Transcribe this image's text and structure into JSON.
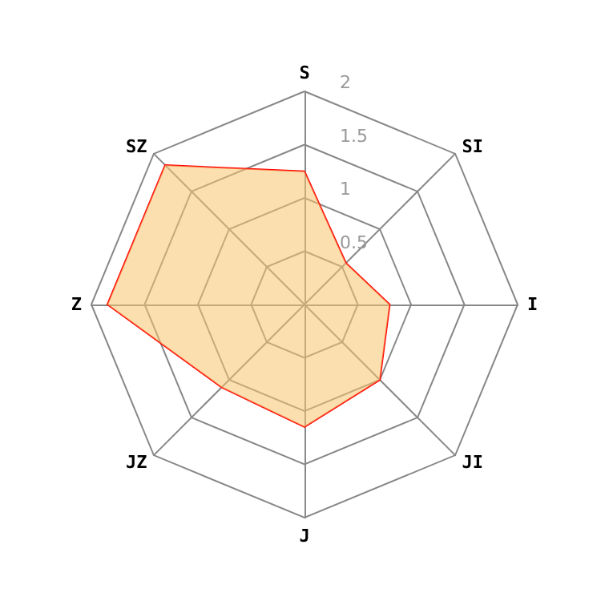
{
  "chart_data": {
    "type": "radar",
    "categories": [
      "S",
      "SI",
      "I",
      "JI",
      "J",
      "JZ",
      "Z",
      "SZ"
    ],
    "series": [
      {
        "color": "#ff0000",
        "values": [
          1.25,
          0.55,
          0.8,
          1.0,
          1.15,
          1.1,
          1.85,
          1.85
        ]
      }
    ],
    "ylim": [
      0,
      2
    ],
    "yticks": [
      0.5,
      1,
      1.5,
      2
    ],
    "grid": true
  }
}
